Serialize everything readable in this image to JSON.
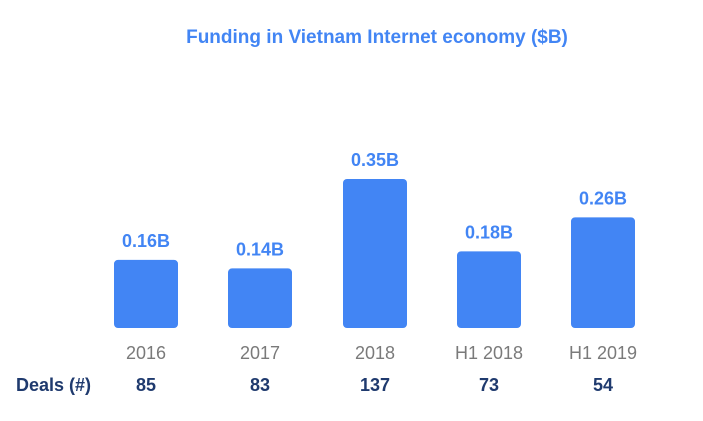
{
  "colors": {
    "bar": "#4285f4",
    "title": "#4285f4",
    "value_label": "#4285f4",
    "category_label": "#7a7a7a",
    "deals": "#1f3a6e"
  },
  "deals": {
    "label": "Deals (#)",
    "values": [
      "85",
      "83",
      "137",
      "73",
      "54"
    ]
  },
  "chart_data": {
    "type": "bar",
    "title": "Funding in Vietnam Internet economy ($B)",
    "categories": [
      "2016",
      "2017",
      "2018",
      "H1 2018",
      "H1 2019"
    ],
    "values": [
      0.16,
      0.14,
      0.35,
      0.18,
      0.26
    ],
    "value_labels": [
      "0.16B",
      "0.14B",
      "0.35B",
      "0.18B",
      "0.26B"
    ],
    "xlabel": "",
    "ylabel": "",
    "ylim": [
      0,
      0.35
    ],
    "grid": false,
    "legend": "none"
  }
}
